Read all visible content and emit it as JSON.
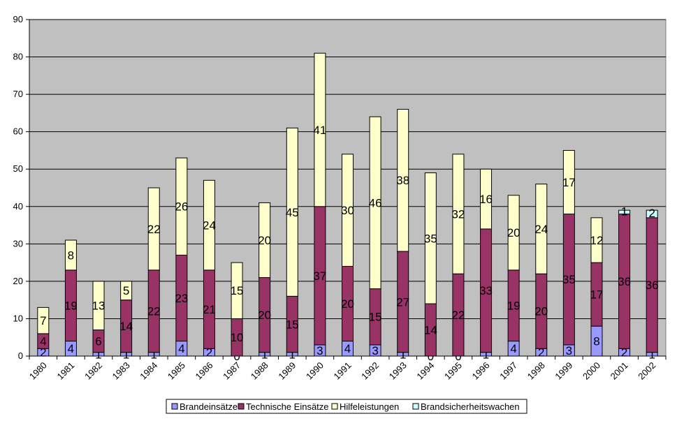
{
  "chart_data": {
    "type": "bar",
    "stacked": true,
    "categories": [
      "1980",
      "1981",
      "1982",
      "1983",
      "1984",
      "1985",
      "1986",
      "1987",
      "1988",
      "1989",
      "1990",
      "1991",
      "1992",
      "1993",
      "1994",
      "1995",
      "1996",
      "1997",
      "1998",
      "1999",
      "2000",
      "2001",
      "2002"
    ],
    "series": [
      {
        "name": "Brandeinsätze",
        "color": "#9999ff",
        "values": [
          2,
          4,
          1,
          1,
          1,
          4,
          2,
          0,
          1,
          1,
          3,
          4,
          3,
          1,
          0,
          0,
          1,
          4,
          2,
          3,
          8,
          2,
          1
        ]
      },
      {
        "name": "Technische Einsätze",
        "color": "#993366",
        "values": [
          4,
          19,
          6,
          14,
          22,
          23,
          21,
          10,
          20,
          15,
          37,
          20,
          15,
          27,
          14,
          22,
          33,
          19,
          20,
          35,
          17,
          36,
          36
        ]
      },
      {
        "name": "Hilfeleistungen",
        "color": "#ffffcc",
        "values": [
          7,
          8,
          13,
          5,
          22,
          26,
          24,
          15,
          20,
          45,
          41,
          30,
          46,
          38,
          35,
          32,
          16,
          20,
          24,
          17,
          12,
          0,
          0
        ]
      },
      {
        "name": "Brandsicherheitswachen",
        "color": "#ccffff",
        "values": [
          0,
          0,
          0,
          0,
          0,
          0,
          0,
          0,
          0,
          0,
          0,
          0,
          0,
          0,
          0,
          0,
          0,
          0,
          0,
          0,
          0,
          1,
          2
        ]
      }
    ],
    "ylim": [
      0,
      90
    ],
    "yticks": [
      0,
      10,
      20,
      30,
      40,
      50,
      60,
      70,
      80,
      90
    ],
    "grid": true,
    "legend": "bottom",
    "plot_background": "#c0c0c0"
  }
}
